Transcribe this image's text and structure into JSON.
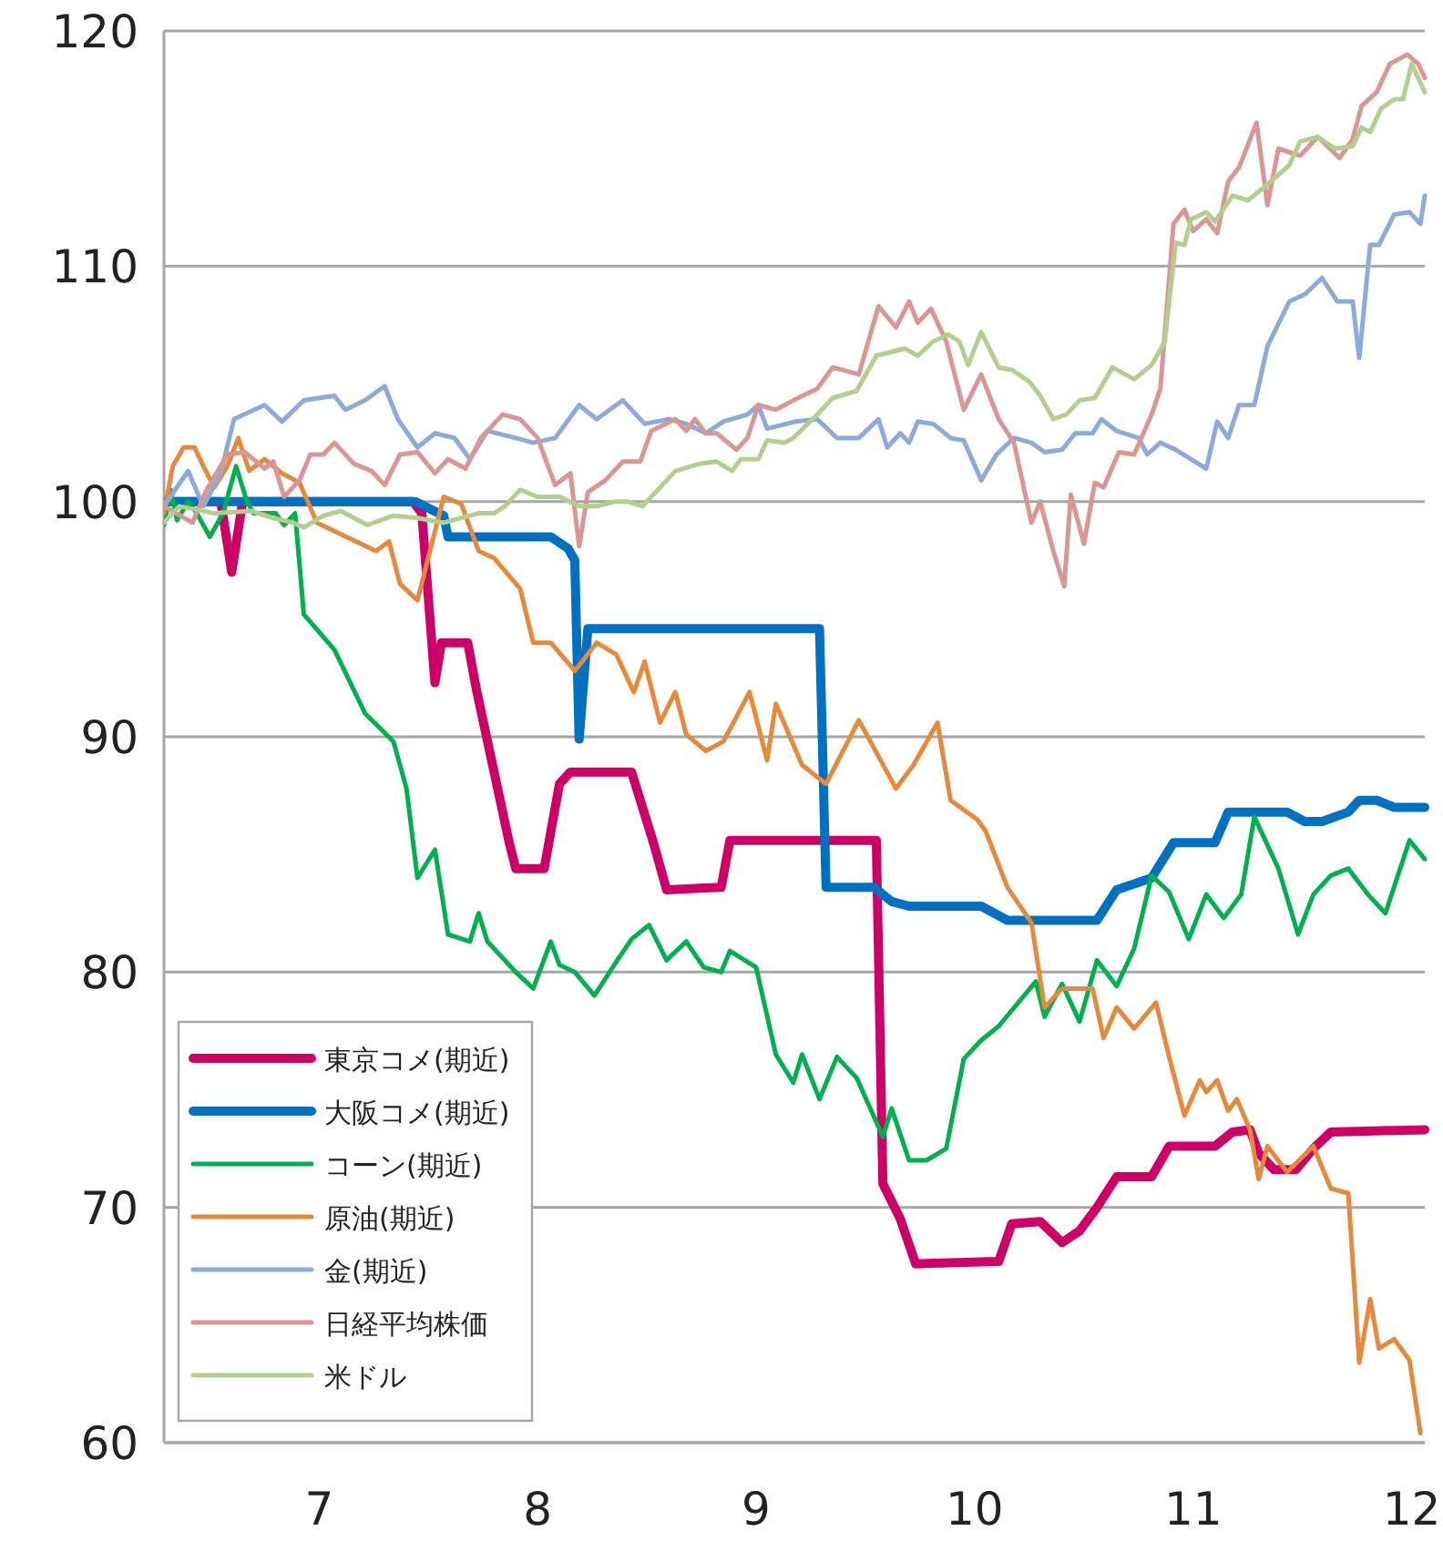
{
  "chart_data": {
    "type": "line",
    "xlim": [
      6.29,
      12.06
    ],
    "ylim": [
      60,
      120
    ],
    "xticks": [
      7,
      8,
      9,
      10,
      11,
      12
    ],
    "yticks": [
      60,
      70,
      80,
      90,
      100,
      110,
      120
    ],
    "grid": "y",
    "legend": "bottom left",
    "line_style": "solid",
    "marker": "none",
    "series": [
      {
        "name": "東京コメ(期近)",
        "color": "#cc0066",
        "x": [
          6.29,
          6.55,
          6.6,
          6.65,
          7.43,
          7.47,
          7.53,
          7.56,
          7.68,
          7.72,
          7.87,
          7.9,
          8.03,
          8.1,
          8.15,
          8.43,
          8.53,
          8.59,
          8.84,
          8.88,
          9.55,
          9.58,
          9.66,
          9.73,
          10.11,
          10.17,
          10.3,
          10.4,
          10.48,
          10.56,
          10.65,
          10.81,
          10.89,
          11.1,
          11.18,
          11.26,
          11.3,
          11.37,
          11.47,
          11.55,
          11.63,
          12.06
        ],
        "values": [
          100,
          100,
          97,
          100,
          100,
          99.5,
          92.3,
          94,
          94,
          92,
          85.5,
          84.4,
          84.4,
          88,
          88.5,
          88.5,
          85.5,
          83.5,
          83.6,
          85.6,
          85.6,
          71,
          69.5,
          67.6,
          67.7,
          69.3,
          69.4,
          68.5,
          69,
          70,
          71.3,
          71.3,
          72.6,
          72.6,
          73.2,
          73.3,
          72.3,
          71.6,
          71.6,
          72.5,
          73.2,
          73.3
        ]
      },
      {
        "name": "大阪コメ(期近)",
        "color": "#0070c0",
        "x": [
          6.29,
          7.44,
          7.57,
          7.59,
          8.06,
          8.14,
          8.17,
          8.19,
          8.23,
          9.29,
          9.32,
          9.54,
          9.62,
          9.7,
          10.03,
          10.15,
          10.56,
          10.65,
          10.81,
          10.91,
          11.1,
          11.16,
          11.43,
          11.51,
          11.59,
          11.71,
          11.76,
          11.84,
          11.92,
          12.06
        ],
        "values": [
          100,
          100,
          99.4,
          98.5,
          98.5,
          98,
          97.5,
          89.9,
          94.6,
          94.6,
          83.6,
          83.6,
          83,
          82.8,
          82.8,
          82.2,
          82.2,
          83.5,
          84,
          85.5,
          85.5,
          86.8,
          86.8,
          86.4,
          86.4,
          86.8,
          87.3,
          87.3,
          87,
          87
        ]
      },
      {
        "name": "コーン(期近)",
        "color": "#00b050",
        "x": [
          6.29,
          6.32,
          6.35,
          6.4,
          6.44,
          6.5,
          6.56,
          6.62,
          6.67,
          6.7,
          6.8,
          6.84,
          6.89,
          6.93,
          7.07,
          7.21,
          7.34,
          7.4,
          7.45,
          7.53,
          7.59,
          7.69,
          7.73,
          7.77,
          7.9,
          7.98,
          8.06,
          8.1,
          8.17,
          8.26,
          8.35,
          8.43,
          8.51,
          8.59,
          8.68,
          8.76,
          8.84,
          8.88,
          9.0,
          9.09,
          9.17,
          9.21,
          9.29,
          9.37,
          9.46,
          9.58,
          9.62,
          9.7,
          9.78,
          9.87,
          9.95,
          10.03,
          10.11,
          10.28,
          10.32,
          10.4,
          10.48,
          10.56,
          10.65,
          10.73,
          10.81,
          10.89,
          10.98,
          11.06,
          11.14,
          11.22,
          11.28,
          11.39,
          11.48,
          11.55,
          11.63,
          11.71,
          11.8,
          11.88,
          11.99,
          12.06
        ],
        "values": [
          99,
          100.5,
          99.2,
          100,
          99.5,
          98.5,
          99.5,
          101.5,
          100,
          99.5,
          99.5,
          99,
          99.5,
          95.2,
          93.7,
          91,
          89.8,
          87.8,
          84,
          85.2,
          81.6,
          81.3,
          82.5,
          81.3,
          80,
          79.3,
          81.3,
          80.3,
          80,
          79,
          80.3,
          81.4,
          82,
          80.5,
          81.3,
          80.2,
          80,
          80.9,
          80.2,
          76.5,
          75.3,
          76.5,
          74.6,
          76.4,
          75.5,
          73,
          74.2,
          72,
          72,
          72.5,
          76.3,
          77.1,
          77.7,
          79.6,
          78.1,
          79.5,
          77.9,
          80.5,
          79.4,
          81,
          84.1,
          83.4,
          81.4,
          83.3,
          82.3,
          83.3,
          86.6,
          84.4,
          81.6,
          83.3,
          84.1,
          84.4,
          83.3,
          82.5,
          85.6,
          84.8
        ]
      },
      {
        "name": "原油(期近)",
        "color": "#e5893c",
        "x": [
          6.29,
          6.33,
          6.38,
          6.43,
          6.47,
          6.52,
          6.58,
          6.63,
          6.68,
          6.75,
          6.83,
          6.91,
          6.99,
          7.26,
          7.32,
          7.37,
          7.45,
          7.57,
          7.65,
          7.73,
          7.8,
          7.92,
          7.98,
          8.06,
          8.17,
          8.27,
          8.36,
          8.44,
          8.49,
          8.56,
          8.63,
          8.68,
          8.77,
          8.85,
          8.97,
          9.05,
          9.09,
          9.21,
          9.32,
          9.47,
          9.64,
          9.72,
          9.83,
          9.89,
          10.01,
          10.05,
          10.15,
          10.26,
          10.32,
          10.4,
          10.54,
          10.59,
          10.65,
          10.73,
          10.83,
          10.89,
          10.96,
          11.03,
          11.06,
          11.11,
          11.16,
          11.2,
          11.26,
          11.3,
          11.34,
          11.43,
          11.55,
          11.63,
          11.71,
          11.76,
          11.81,
          11.85,
          11.92,
          11.99,
          12.04
        ],
        "values": [
          99.5,
          101.5,
          102.3,
          102.3,
          101.5,
          100.6,
          101.5,
          102.7,
          101.3,
          101.8,
          101.2,
          100.8,
          99.1,
          97.9,
          98.3,
          96.5,
          95.8,
          100.2,
          99.9,
          97.9,
          97.6,
          96.3,
          94,
          94,
          92.8,
          94,
          93.5,
          91.9,
          93.2,
          90.6,
          91.9,
          90.1,
          89.4,
          89.8,
          91.9,
          89,
          91.4,
          88.8,
          88,
          90.7,
          87.8,
          88.8,
          90.6,
          87.3,
          86.5,
          86,
          83.6,
          82.1,
          78.5,
          79.3,
          79.3,
          77.2,
          78.5,
          77.6,
          78.7,
          76.4,
          73.9,
          75.4,
          74.9,
          75.4,
          74.1,
          74.6,
          73.3,
          71.2,
          72.6,
          71.5,
          72.6,
          70.8,
          70.6,
          63.4,
          66.1,
          64,
          64.4,
          63.5,
          60.4
        ]
      },
      {
        "name": "金(期近)",
        "color": "#8eaadb",
        "x": [
          6.29,
          6.4,
          6.47,
          6.55,
          6.61,
          6.75,
          6.83,
          6.93,
          7.07,
          7.12,
          7.21,
          7.3,
          7.36,
          7.45,
          7.53,
          7.62,
          7.69,
          7.77,
          7.9,
          7.98,
          8.08,
          8.19,
          8.27,
          8.39,
          8.49,
          8.6,
          8.68,
          8.77,
          8.85,
          8.96,
          9.01,
          9.05,
          9.18,
          9.28,
          9.37,
          9.47,
          9.56,
          9.6,
          9.66,
          9.7,
          9.74,
          9.81,
          9.89,
          9.95,
          10.03,
          10.1,
          10.18,
          10.26,
          10.32,
          10.4,
          10.46,
          10.54,
          10.58,
          10.65,
          10.75,
          10.79,
          10.85,
          10.92,
          11.06,
          11.11,
          11.16,
          11.21,
          11.28,
          11.34,
          11.44,
          11.51,
          11.59,
          11.66,
          11.73,
          11.76,
          11.81,
          11.85,
          11.92,
          11.99,
          12.04,
          12.06
        ],
        "values": [
          99.8,
          101.3,
          99.8,
          101.2,
          103.5,
          104.1,
          103.4,
          104.3,
          104.5,
          103.9,
          104.3,
          104.9,
          103.5,
          102.3,
          102.9,
          102.7,
          101.8,
          103,
          102.7,
          102.5,
          102.7,
          104.1,
          103.5,
          104.3,
          103.3,
          103.5,
          103.3,
          102.9,
          103.4,
          103.7,
          104.1,
          103.1,
          103.4,
          103.5,
          102.7,
          102.7,
          103.5,
          102.3,
          102.9,
          102.5,
          103.4,
          103.3,
          102.7,
          102.6,
          100.9,
          102,
          102.7,
          102.5,
          102.1,
          102.2,
          102.9,
          102.9,
          103.5,
          103,
          102.7,
          102,
          102.5,
          102.2,
          101.4,
          103.4,
          102.7,
          104.1,
          104.1,
          106.6,
          108.5,
          108.8,
          109.5,
          108.5,
          108.5,
          106.1,
          110.9,
          110.9,
          112.2,
          112.3,
          111.8,
          113
        ]
      },
      {
        "name": "日経平均株価",
        "color": "#d99694",
        "x": [
          6.29,
          6.42,
          6.48,
          6.58,
          6.66,
          6.75,
          6.79,
          6.84,
          6.91,
          6.96,
          7.02,
          7.07,
          7.16,
          7.24,
          7.3,
          7.37,
          7.45,
          7.53,
          7.59,
          7.67,
          7.74,
          7.84,
          7.92,
          8.0,
          8.08,
          8.15,
          8.19,
          8.23,
          8.31,
          8.39,
          8.47,
          8.52,
          8.63,
          8.68,
          8.72,
          8.77,
          8.82,
          8.91,
          8.96,
          9.01,
          9.09,
          9.17,
          9.28,
          9.35,
          9.47,
          9.56,
          9.64,
          9.7,
          9.74,
          9.8,
          9.87,
          9.95,
          10.03,
          10.11,
          10.18,
          10.26,
          10.3,
          10.36,
          10.41,
          10.44,
          10.5,
          10.55,
          10.59,
          10.66,
          10.73,
          10.81,
          10.85,
          10.91,
          10.96,
          11.0,
          11.06,
          11.11,
          11.16,
          11.21,
          11.29,
          11.34,
          11.39,
          11.49,
          11.57,
          11.67,
          11.73,
          11.77,
          11.84,
          11.9,
          11.98,
          12.03,
          12.06
        ],
        "values": [
          99.8,
          99.1,
          100.4,
          102,
          102.1,
          101.4,
          101.7,
          100.2,
          100.9,
          102,
          102,
          102.5,
          101.6,
          101.3,
          100.7,
          102,
          102.1,
          101.2,
          101.8,
          101.4,
          102.7,
          103.7,
          103.5,
          102.7,
          100.7,
          101.2,
          98.1,
          100.4,
          100.9,
          101.7,
          101.7,
          103,
          103.5,
          103,
          103.5,
          102.9,
          102.9,
          102.2,
          102.7,
          104.1,
          103.9,
          104.3,
          104.8,
          105.7,
          105.4,
          108.3,
          107.4,
          108.5,
          107.6,
          108.2,
          106.8,
          103.9,
          105.4,
          103.5,
          102.5,
          99.1,
          100,
          97.9,
          96.4,
          100.3,
          98.2,
          100.8,
          100.6,
          102.1,
          102,
          103.7,
          104.8,
          111.8,
          112.4,
          111.5,
          112,
          111.4,
          113.6,
          114.2,
          116.1,
          112.6,
          115,
          114.7,
          115.5,
          114.6,
          115.4,
          116.8,
          117.4,
          118.6,
          119,
          118.6,
          118
        ]
      },
      {
        "name": "米ドル",
        "color": "#b3cf8e",
        "x": [
          6.29,
          6.36,
          6.52,
          6.69,
          6.79,
          6.88,
          6.93,
          7.02,
          7.1,
          7.22,
          7.34,
          7.45,
          7.57,
          7.65,
          7.73,
          7.8,
          7.85,
          7.92,
          8.0,
          8.1,
          8.19,
          8.27,
          8.36,
          8.41,
          8.48,
          8.52,
          8.63,
          8.74,
          8.82,
          8.89,
          8.93,
          9.01,
          9.05,
          9.13,
          9.17,
          9.28,
          9.35,
          9.46,
          9.55,
          9.68,
          9.74,
          9.81,
          9.88,
          9.93,
          9.97,
          10.03,
          10.11,
          10.17,
          10.25,
          10.3,
          10.36,
          10.42,
          10.48,
          10.55,
          10.63,
          10.73,
          10.81,
          10.87,
          10.92,
          10.96,
          10.99,
          11.06,
          11.1,
          11.18,
          11.25,
          11.33,
          11.44,
          11.49,
          11.57,
          11.65,
          11.73,
          11.77,
          11.81,
          11.86,
          11.92,
          11.96,
          12.0,
          12.06
        ],
        "values": [
          99.1,
          99.8,
          99.5,
          99.6,
          99.3,
          99.1,
          98.9,
          99.4,
          99.6,
          99,
          99.4,
          99.3,
          99.1,
          99.3,
          99.5,
          99.5,
          99.8,
          100.5,
          100.2,
          100.2,
          99.8,
          99.8,
          100,
          100,
          99.8,
          100.2,
          101.3,
          101.6,
          101.7,
          101.3,
          101.8,
          101.8,
          102.6,
          102.5,
          102.7,
          103.7,
          104.4,
          104.7,
          106.2,
          106.5,
          106.2,
          106.8,
          107.1,
          106.8,
          105.8,
          107.2,
          105.7,
          105.6,
          105.1,
          104.5,
          103.5,
          103.7,
          104.3,
          104.4,
          105.7,
          105.2,
          105.8,
          106.8,
          111,
          110.9,
          112,
          112.3,
          111.9,
          113,
          112.8,
          113.4,
          114.3,
          115.3,
          115.5,
          115,
          115.1,
          115.9,
          115.7,
          116.7,
          117.1,
          117.1,
          118.6,
          117.4
        ]
      }
    ]
  }
}
